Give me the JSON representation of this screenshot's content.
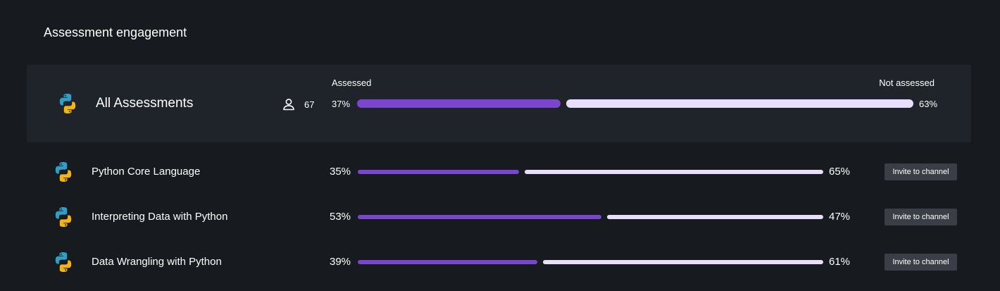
{
  "header": {
    "title": "Assessment engagement"
  },
  "summary": {
    "name": "All Assessments",
    "icon": "python-logo-icon",
    "learner_count": "67",
    "assessed_label": "Assessed",
    "not_assessed_label": "Not assessed",
    "assessed_pct": "37%",
    "not_assessed_pct": "63%",
    "assessed_fraction": 0.37
  },
  "rows": [
    {
      "name": "Python Core Language",
      "assessed_pct": "35%",
      "not_assessed_pct": "65%",
      "assessed_fraction": 0.35,
      "button_label": "Invite to channel"
    },
    {
      "name": "Interpreting Data with Python",
      "assessed_pct": "53%",
      "not_assessed_pct": "47%",
      "assessed_fraction": 0.53,
      "button_label": "Invite to channel"
    },
    {
      "name": "Data Wrangling with Python",
      "assessed_pct": "39%",
      "not_assessed_pct": "61%",
      "assessed_fraction": 0.39,
      "button_label": "Invite to channel"
    }
  ],
  "colors": {
    "assessed": "#7a45cf",
    "not_assessed": "#e9dffb",
    "background": "#171a1e",
    "summary_bg": "#1f242b"
  }
}
